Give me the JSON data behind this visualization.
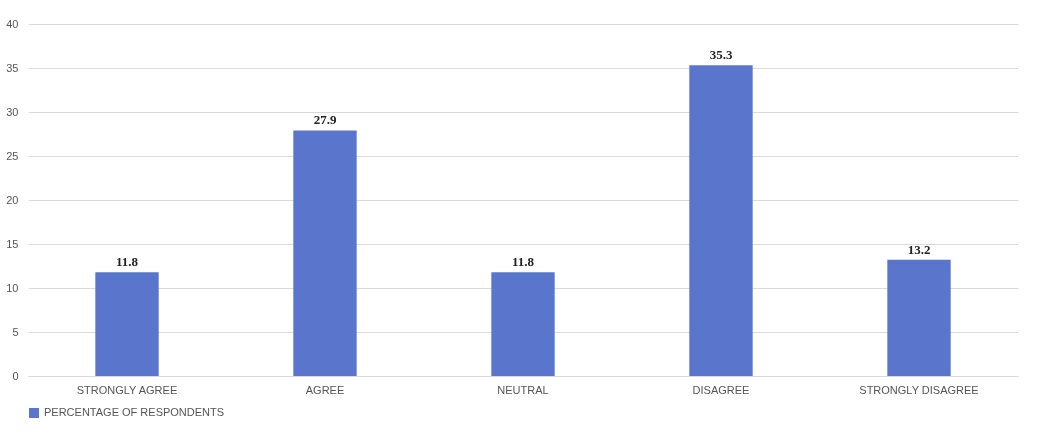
{
  "chart_data": {
    "type": "bar",
    "categories": [
      "STRONGLY AGREE",
      "AGREE",
      "NEUTRAL",
      "DISAGREE",
      "STRONGLY DISAGREE"
    ],
    "series": [
      {
        "name": "PERCENTAGE OF RESPONDENTS",
        "color": "#5a76cc",
        "values": [
          11.8,
          27.9,
          11.8,
          35.3,
          13.2
        ]
      }
    ],
    "ylim": [
      0,
      40
    ],
    "yticks": [
      0,
      5,
      10,
      15,
      20,
      25,
      30,
      35,
      40
    ],
    "grid": "y",
    "data_labels": true,
    "legend": "bottom"
  }
}
